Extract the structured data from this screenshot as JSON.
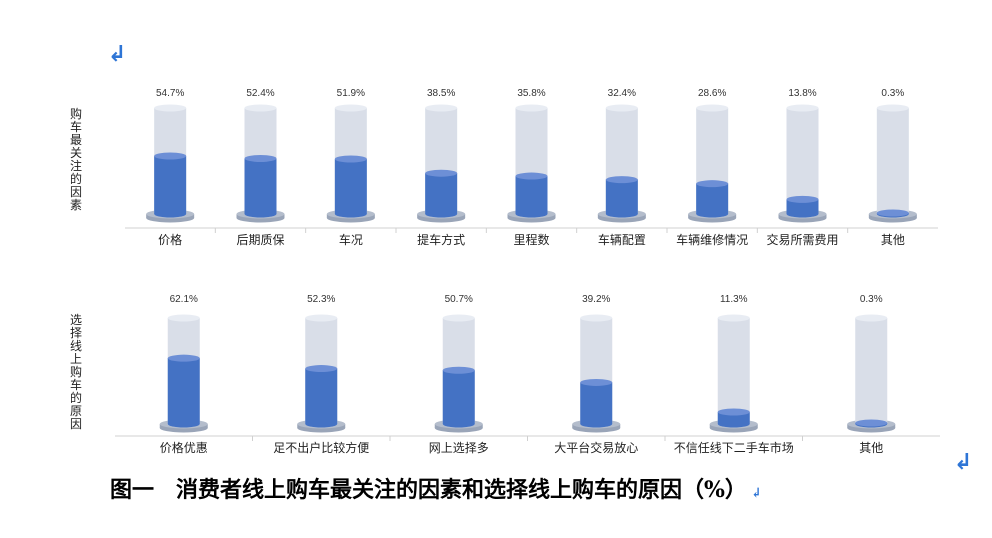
{
  "marks": {
    "top_return": "↲",
    "right_return": "↲",
    "caption_return": "↲"
  },
  "chart_data": [
    {
      "type": "bar",
      "ylabel": "购车最关注的因素",
      "ylim": [
        0,
        100
      ],
      "categories": [
        "价格",
        "后期质保",
        "车况",
        "提车方式",
        "里程数",
        "车辆配置",
        "车辆维修情况",
        "交易所需费用",
        "其他"
      ],
      "values": [
        54.7,
        52.4,
        51.9,
        38.5,
        35.8,
        32.4,
        28.6,
        13.8,
        0.3
      ],
      "value_labels": [
        "54.7%",
        "52.4%",
        "51.9%",
        "38.5%",
        "35.8%",
        "32.4%",
        "28.6%",
        "13.8%",
        "0.3%"
      ]
    },
    {
      "type": "bar",
      "ylabel": "选择线上购车的原因",
      "ylim": [
        0,
        100
      ],
      "categories": [
        "价格优惠",
        "足不出户比较方便",
        "网上选择多",
        "大平台交易放心",
        "不信任线下二手车市场",
        "其他"
      ],
      "values": [
        62.1,
        52.3,
        50.7,
        39.2,
        11.3,
        0.3
      ],
      "value_labels": [
        "62.1%",
        "52.3%",
        "50.7%",
        "39.2%",
        "11.3%",
        "0.3%"
      ]
    }
  ],
  "caption": "图一　消费者线上购车最关注的因素和选择线上购车的原因（%）",
  "colors": {
    "fill": "#4472c4",
    "fill_top": "#6d8fd6",
    "tube": "#d9dee8",
    "tube_top": "#e8ecf3",
    "base": "#9aa5b8",
    "axis": "#d0d0d0"
  }
}
